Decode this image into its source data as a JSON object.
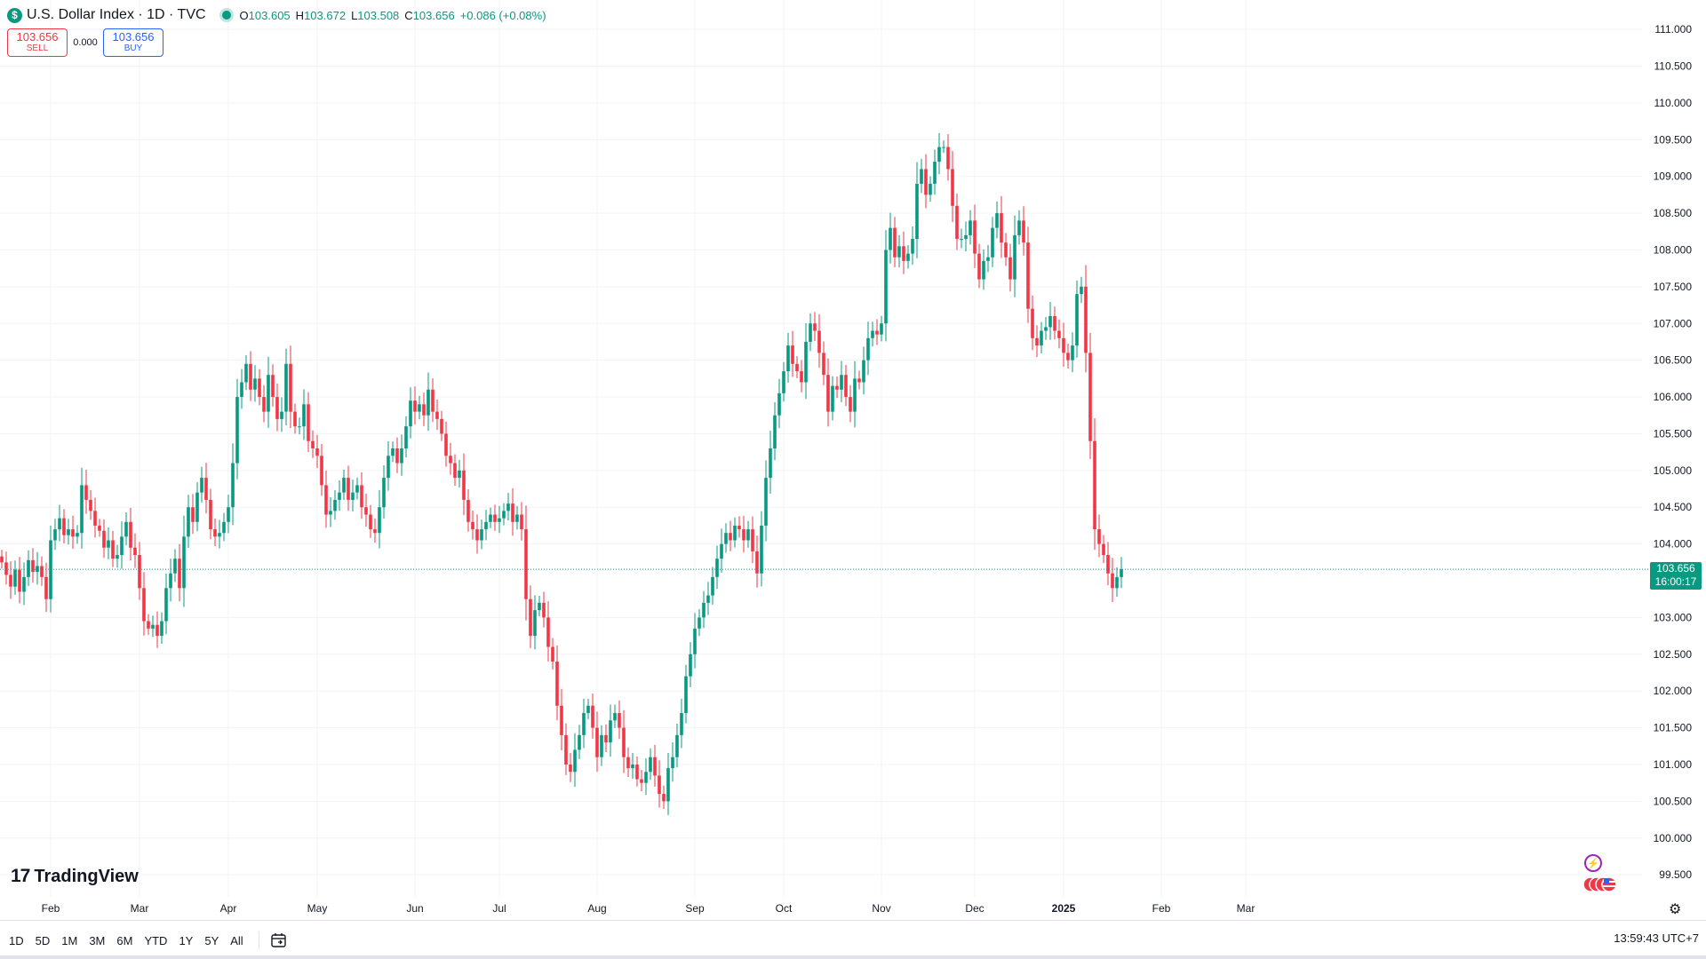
{
  "header": {
    "symbol_letter": "$",
    "title": "U.S. Dollar Index · 1D · TVC",
    "open_label": "O",
    "open": "103.605",
    "high_label": "H",
    "high": "103.672",
    "low_label": "L",
    "low": "103.508",
    "close_label": "C",
    "close": "103.656",
    "change": "+0.086 (+0.08%)"
  },
  "trade": {
    "sell_price": "103.656",
    "sell_label": "SELL",
    "spread": "0.000",
    "buy_price": "103.656",
    "buy_label": "BUY"
  },
  "price_tag": {
    "price": "103.656",
    "countdown": "16:00:17"
  },
  "logo": {
    "text": "TradingView",
    "mark": "17"
  },
  "bottom": {
    "ranges": [
      "1D",
      "5D",
      "1M",
      "3M",
      "6M",
      "YTD",
      "1Y",
      "5Y",
      "All"
    ],
    "clock": "13:59:43 UTC+7"
  },
  "colors": {
    "up": "#089981",
    "down": "#f23645",
    "grid": "#f0f3fa",
    "accent": "#2962ff"
  },
  "icons": [
    "dollar-symbol-icon",
    "status-dot-icon",
    "calendar-range-icon",
    "lightning-icon",
    "us-flag-events-icon",
    "settings-gear-icon"
  ],
  "chart_data": {
    "type": "candlestick",
    "title": "U.S. Dollar Index · 1D · TVC",
    "ylim": [
      99.2,
      111.4
    ],
    "y_ticks": [
      "111.000",
      "110.500",
      "110.000",
      "109.500",
      "109.000",
      "108.500",
      "108.000",
      "107.500",
      "107.000",
      "106.500",
      "106.000",
      "105.500",
      "105.000",
      "104.500",
      "104.000",
      "103.000",
      "102.500",
      "102.000",
      "101.500",
      "101.000",
      "100.500",
      "100.000",
      "99.500"
    ],
    "x_labels": [
      {
        "label": "Feb",
        "i": 11
      },
      {
        "label": "Mar",
        "i": 31
      },
      {
        "label": "Apr",
        "i": 51
      },
      {
        "label": "May",
        "i": 71
      },
      {
        "label": "Jun",
        "i": 93
      },
      {
        "label": "Jul",
        "i": 112
      },
      {
        "label": "Aug",
        "i": 134
      },
      {
        "label": "Sep",
        "i": 156
      },
      {
        "label": "Oct",
        "i": 176
      },
      {
        "label": "Nov",
        "i": 198
      },
      {
        "label": "Dec",
        "i": 219
      },
      {
        "label": "2025",
        "i": 239,
        "bold": true
      },
      {
        "label": "Feb",
        "i": 261
      },
      {
        "label": "Mar",
        "i": 280
      }
    ],
    "last_price": 103.656,
    "grid": true,
    "closes": [
      103.75,
      103.58,
      103.42,
      103.65,
      103.35,
      103.55,
      103.78,
      103.62,
      103.7,
      103.55,
      103.25,
      104.05,
      104.2,
      104.35,
      104.12,
      104.2,
      104.1,
      104.15,
      104.8,
      104.6,
      104.45,
      104.25,
      104.18,
      103.95,
      104.05,
      103.8,
      103.85,
      104.1,
      104.3,
      103.95,
      103.85,
      103.4,
      102.95,
      102.85,
      102.9,
      102.75,
      102.95,
      103.4,
      103.6,
      103.8,
      103.4,
      104.1,
      104.5,
      104.3,
      104.7,
      104.9,
      104.6,
      104.2,
      104.1,
      104.15,
      104.3,
      104.5,
      105.1,
      106.0,
      106.2,
      106.45,
      106.1,
      106.25,
      106.0,
      105.8,
      106.3,
      106.0,
      105.7,
      105.8,
      106.45,
      105.8,
      105.6,
      105.6,
      105.9,
      105.4,
      105.3,
      105.2,
      104.8,
      104.4,
      104.45,
      104.6,
      104.7,
      104.9,
      104.6,
      104.7,
      104.8,
      104.5,
      104.4,
      104.2,
      104.15,
      104.5,
      104.9,
      105.2,
      105.3,
      105.1,
      105.3,
      105.6,
      105.95,
      105.8,
      105.9,
      105.75,
      106.1,
      105.8,
      105.7,
      105.5,
      105.2,
      105.1,
      104.9,
      105.0,
      104.6,
      104.3,
      104.2,
      104.05,
      104.2,
      104.3,
      104.4,
      104.3,
      104.35,
      104.45,
      104.55,
      104.3,
      104.4,
      104.2,
      103.25,
      102.75,
      103.1,
      103.2,
      103.0,
      102.6,
      102.4,
      101.8,
      101.4,
      101.0,
      100.9,
      101.2,
      101.4,
      101.7,
      101.8,
      101.5,
      101.1,
      101.4,
      101.3,
      101.6,
      101.7,
      101.5,
      101.1,
      100.95,
      101.0,
      100.8,
      100.75,
      100.9,
      101.1,
      100.85,
      100.6,
      100.5,
      100.95,
      101.1,
      101.4,
      101.7,
      102.2,
      102.5,
      102.85,
      103.0,
      103.2,
      103.3,
      103.55,
      103.8,
      104.0,
      104.15,
      104.05,
      104.25,
      104.2,
      104.05,
      104.2,
      103.9,
      103.6,
      104.25,
      104.9,
      105.3,
      105.75,
      106.05,
      106.35,
      106.7,
      106.45,
      106.35,
      106.2,
      106.75,
      107.0,
      106.9,
      106.6,
      106.3,
      105.8,
      106.15,
      106.1,
      106.3,
      106.0,
      105.8,
      106.25,
      106.2,
      106.5,
      106.8,
      106.9,
      106.85,
      107.0,
      108.0,
      108.3,
      107.9,
      108.05,
      107.85,
      107.95,
      108.15,
      108.9,
      109.1,
      108.75,
      108.9,
      109.2,
      109.4,
      109.4,
      109.1,
      108.6,
      108.15,
      108.15,
      108.2,
      108.4,
      107.95,
      107.6,
      107.85,
      107.9,
      108.3,
      108.5,
      108.1,
      107.9,
      107.6,
      108.2,
      108.4,
      108.1,
      107.2,
      106.8,
      106.7,
      106.9,
      106.95,
      107.1,
      106.9,
      106.8,
      106.6,
      106.5,
      106.7,
      107.4,
      107.5,
      106.6,
      105.4,
      104.2,
      104.0,
      103.85,
      103.6,
      103.4,
      103.55,
      103.656
    ]
  }
}
